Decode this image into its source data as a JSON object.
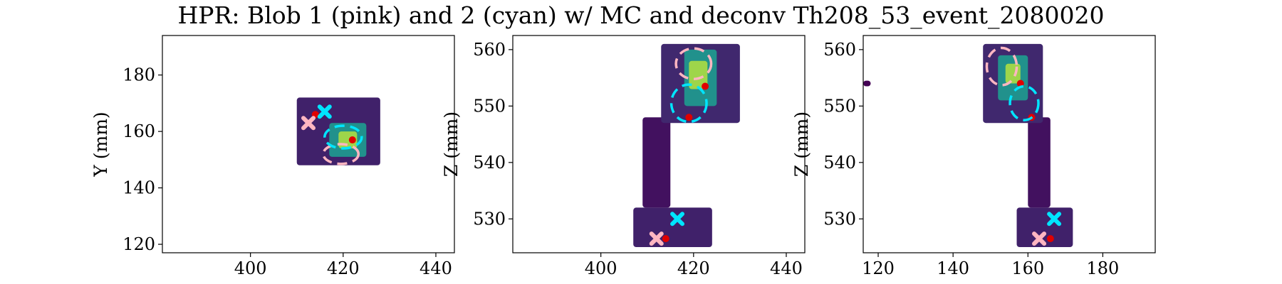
{
  "figure": {
    "title": "HPR: Blob 1 (pink) and 2 (cyan) w/ MC and deconv Th208_53_event_2080020"
  },
  "colors": {
    "blob1": "#ffb6c1",
    "blob2": "#00e5ff",
    "mc": "#e00000",
    "colormap": [
      "#440154",
      "#3b528b",
      "#21918c",
      "#5ec962",
      "#fde725"
    ]
  },
  "chart_data": [
    {
      "type": "heatmap",
      "title": "",
      "xlabel": "",
      "ylabel": "Y (mm)",
      "xlim": [
        381,
        444
      ],
      "ylim": [
        117,
        194
      ],
      "xticks": [
        400,
        420,
        440
      ],
      "yticks": [
        120,
        140,
        160,
        180
      ],
      "blobs": [
        {
          "name": "Blob 1",
          "marker_x": 412.5,
          "marker_y": 163,
          "ellipse": {
            "cx": 419.5,
            "cy": 152,
            "rx": 3.8,
            "ry": 3.5
          }
        },
        {
          "name": "Blob 2",
          "marker_x": 416,
          "marker_y": 167,
          "ellipse": {
            "cx": 420,
            "cy": 158,
            "rx": 4,
            "ry": 4
          }
        }
      ],
      "mc_points": [
        {
          "x": 414,
          "y": 166
        },
        {
          "x": 422,
          "y": 157
        }
      ],
      "regions": [
        {
          "x": [
            410,
            428
          ],
          "y": [
            148,
            172
          ],
          "intensity": 0.1
        },
        {
          "x": [
            417,
            425
          ],
          "y": [
            151,
            163
          ],
          "intensity": 0.5
        },
        {
          "x": [
            419,
            423
          ],
          "y": [
            154,
            160
          ],
          "intensity": 0.85
        }
      ]
    },
    {
      "type": "heatmap",
      "title": "",
      "xlabel": "",
      "ylabel": "Z (mm)",
      "xlim": [
        381,
        444
      ],
      "ylim": [
        524,
        562.5
      ],
      "xticks": [
        400,
        420,
        440
      ],
      "yticks": [
        530,
        540,
        550,
        560
      ],
      "blobs": [
        {
          "name": "Blob 1",
          "marker_x": 412,
          "marker_y": 526.5,
          "ellipse": {
            "cx": 420,
            "cy": 557.5,
            "rx": 3.8,
            "ry": 2.7
          }
        },
        {
          "name": "Blob 2",
          "marker_x": 416.5,
          "marker_y": 530,
          "ellipse": {
            "cx": 419,
            "cy": 550.5,
            "rx": 3.8,
            "ry": 3.3
          }
        }
      ],
      "mc_points": [
        {
          "x": 414,
          "y": 526.5
        },
        {
          "x": 419,
          "y": 548
        },
        {
          "x": 422.5,
          "y": 553.5
        }
      ],
      "regions": [
        {
          "x": [
            409,
            415
          ],
          "y": [
            532,
            548
          ],
          "intensity": 0.05
        },
        {
          "x": [
            407,
            424
          ],
          "y": [
            525,
            532
          ],
          "intensity": 0.1
        },
        {
          "x": [
            413,
            430
          ],
          "y": [
            547,
            561
          ],
          "intensity": 0.12
        },
        {
          "x": [
            418,
            425
          ],
          "y": [
            550,
            560
          ],
          "intensity": 0.5
        },
        {
          "x": [
            419,
            423
          ],
          "y": [
            553,
            558
          ],
          "intensity": 0.85
        }
      ]
    },
    {
      "type": "heatmap",
      "title": "",
      "xlabel": "",
      "ylabel": "Z (mm)",
      "xlim": [
        116,
        194
      ],
      "ylim": [
        524,
        562.5
      ],
      "xticks": [
        120,
        140,
        160,
        180
      ],
      "yticks": [
        530,
        540,
        550,
        560
      ],
      "blobs": [
        {
          "name": "Blob 1",
          "marker_x": 163,
          "marker_y": 526.5,
          "ellipse": {
            "cx": 153,
            "cy": 557,
            "rx": 4,
            "ry": 3.3
          }
        },
        {
          "name": "Blob 2",
          "marker_x": 167,
          "marker_y": 530,
          "ellipse": {
            "cx": 159,
            "cy": 550.5,
            "rx": 3.8,
            "ry": 3
          }
        }
      ],
      "mc_points": [
        {
          "x": 166,
          "y": 526.5
        },
        {
          "x": 158,
          "y": 554
        },
        {
          "x": 161,
          "y": 548
        }
      ],
      "regions": [
        {
          "x": [
            160,
            166
          ],
          "y": [
            532,
            548
          ],
          "intensity": 0.05
        },
        {
          "x": [
            157,
            172
          ],
          "y": [
            525,
            532
          ],
          "intensity": 0.1
        },
        {
          "x": [
            148,
            164
          ],
          "y": [
            547,
            561
          ],
          "intensity": 0.12
        },
        {
          "x": [
            152,
            160
          ],
          "y": [
            551,
            559
          ],
          "intensity": 0.5
        },
        {
          "x": [
            154,
            158
          ],
          "y": [
            554,
            557.5
          ],
          "intensity": 0.85
        },
        {
          "x": [
            116,
            118
          ],
          "y": [
            553.5,
            554.5
          ],
          "intensity": 0.0
        }
      ]
    }
  ]
}
